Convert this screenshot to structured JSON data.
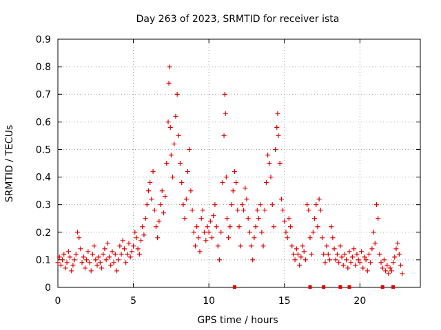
{
  "chart_data": {
    "type": "scatter",
    "title": "Day 263 of 2023, SRMTID for receiver ista",
    "xlabel": "GPS time / hours",
    "ylabel": "SRMTID / TECUs",
    "xlim": [
      0,
      24
    ],
    "ylim": [
      0,
      0.9
    ],
    "xticks": [
      "0",
      "5",
      "10",
      "15",
      "20"
    ],
    "yticks": [
      "0",
      "0.1",
      "0.2",
      "0.3",
      "0.4",
      "0.5",
      "0.6",
      "0.7",
      "0.8",
      "0.9"
    ],
    "grid": true,
    "marker": "plus",
    "color": "#e00000",
    "zero_markers_x": [
      11.7,
      16.7,
      17.6,
      18.7,
      19.3,
      21.5,
      22.2
    ],
    "series": [
      {
        "name": "SRMTID",
        "points": [
          [
            0.0,
            0.09
          ],
          [
            0.1,
            0.11
          ],
          [
            0.2,
            0.08
          ],
          [
            0.3,
            0.1
          ],
          [
            0.4,
            0.12
          ],
          [
            0.5,
            0.07
          ],
          [
            0.6,
            0.09
          ],
          [
            0.7,
            0.13
          ],
          [
            0.8,
            0.11
          ],
          [
            0.9,
            0.06
          ],
          [
            1.0,
            0.08
          ],
          [
            1.1,
            0.1
          ],
          [
            1.2,
            0.12
          ],
          [
            1.3,
            0.2
          ],
          [
            1.4,
            0.18
          ],
          [
            1.5,
            0.14
          ],
          [
            1.6,
            0.09
          ],
          [
            1.7,
            0.11
          ],
          [
            1.8,
            0.07
          ],
          [
            1.9,
            0.1
          ],
          [
            2.0,
            0.13
          ],
          [
            2.1,
            0.09
          ],
          [
            2.2,
            0.06
          ],
          [
            2.3,
            0.12
          ],
          [
            2.4,
            0.15
          ],
          [
            2.5,
            0.1
          ],
          [
            2.6,
            0.08
          ],
          [
            2.7,
            0.11
          ],
          [
            2.8,
            0.09
          ],
          [
            2.9,
            0.07
          ],
          [
            3.0,
            0.12
          ],
          [
            3.1,
            0.14
          ],
          [
            3.2,
            0.1
          ],
          [
            3.3,
            0.16
          ],
          [
            3.4,
            0.11
          ],
          [
            3.5,
            0.08
          ],
          [
            3.6,
            0.13
          ],
          [
            3.7,
            0.09
          ],
          [
            3.8,
            0.12
          ],
          [
            3.9,
            0.06
          ],
          [
            4.0,
            0.1
          ],
          [
            4.1,
            0.15
          ],
          [
            4.2,
            0.12
          ],
          [
            4.3,
            0.17
          ],
          [
            4.4,
            0.14
          ],
          [
            4.5,
            0.09
          ],
          [
            4.6,
            0.12
          ],
          [
            4.7,
            0.16
          ],
          [
            4.8,
            0.11
          ],
          [
            4.9,
            0.13
          ],
          [
            5.0,
            0.15
          ],
          [
            5.1,
            0.2
          ],
          [
            5.2,
            0.18
          ],
          [
            5.3,
            0.14
          ],
          [
            5.4,
            0.12
          ],
          [
            5.5,
            0.17
          ],
          [
            5.6,
            0.22
          ],
          [
            5.7,
            0.19
          ],
          [
            5.8,
            0.25
          ],
          [
            5.9,
            0.3
          ],
          [
            6.0,
            0.35
          ],
          [
            6.1,
            0.38
          ],
          [
            6.2,
            0.32
          ],
          [
            6.3,
            0.42
          ],
          [
            6.4,
            0.28
          ],
          [
            6.5,
            0.22
          ],
          [
            6.6,
            0.18
          ],
          [
            6.7,
            0.24
          ],
          [
            6.8,
            0.3
          ],
          [
            6.9,
            0.35
          ],
          [
            7.0,
            0.27
          ],
          [
            7.1,
            0.33
          ],
          [
            7.2,
            0.45
          ],
          [
            7.3,
            0.6
          ],
          [
            7.35,
            0.74
          ],
          [
            7.4,
            0.8
          ],
          [
            7.45,
            0.58
          ],
          [
            7.5,
            0.48
          ],
          [
            7.6,
            0.4
          ],
          [
            7.7,
            0.52
          ],
          [
            7.8,
            0.62
          ],
          [
            7.9,
            0.7
          ],
          [
            8.0,
            0.55
          ],
          [
            8.1,
            0.45
          ],
          [
            8.2,
            0.38
          ],
          [
            8.3,
            0.3
          ],
          [
            8.4,
            0.25
          ],
          [
            8.5,
            0.32
          ],
          [
            8.6,
            0.42
          ],
          [
            8.7,
            0.5
          ],
          [
            8.8,
            0.35
          ],
          [
            8.9,
            0.28
          ],
          [
            9.0,
            0.2
          ],
          [
            9.1,
            0.15
          ],
          [
            9.2,
            0.22
          ],
          [
            9.3,
            0.18
          ],
          [
            9.4,
            0.13
          ],
          [
            9.5,
            0.25
          ],
          [
            9.6,
            0.28
          ],
          [
            9.7,
            0.2
          ],
          [
            9.8,
            0.17
          ],
          [
            9.9,
            0.22
          ],
          [
            10.0,
            0.2
          ],
          [
            10.1,
            0.24
          ],
          [
            10.2,
            0.18
          ],
          [
            10.3,
            0.26
          ],
          [
            10.4,
            0.3
          ],
          [
            10.5,
            0.22
          ],
          [
            10.6,
            0.15
          ],
          [
            10.7,
            0.1
          ],
          [
            10.8,
            0.2
          ],
          [
            10.9,
            0.38
          ],
          [
            11.0,
            0.55
          ],
          [
            11.05,
            0.7
          ],
          [
            11.1,
            0.63
          ],
          [
            11.15,
            0.4
          ],
          [
            11.2,
            0.25
          ],
          [
            11.3,
            0.18
          ],
          [
            11.4,
            0.22
          ],
          [
            11.5,
            0.3
          ],
          [
            11.6,
            0.35
          ],
          [
            11.7,
            0.42
          ],
          [
            11.8,
            0.38
          ],
          [
            11.9,
            0.28
          ],
          [
            12.0,
            0.22
          ],
          [
            12.1,
            0.15
          ],
          [
            12.2,
            0.3
          ],
          [
            12.3,
            0.28
          ],
          [
            12.4,
            0.36
          ],
          [
            12.5,
            0.32
          ],
          [
            12.6,
            0.25
          ],
          [
            12.7,
            0.2
          ],
          [
            12.8,
            0.15
          ],
          [
            12.9,
            0.1
          ],
          [
            13.0,
            0.18
          ],
          [
            13.1,
            0.22
          ],
          [
            13.2,
            0.28
          ],
          [
            13.3,
            0.25
          ],
          [
            13.4,
            0.3
          ],
          [
            13.5,
            0.2
          ],
          [
            13.6,
            0.15
          ],
          [
            13.7,
            0.28
          ],
          [
            13.8,
            0.38
          ],
          [
            13.9,
            0.48
          ],
          [
            14.0,
            0.45
          ],
          [
            14.1,
            0.4
          ],
          [
            14.2,
            0.3
          ],
          [
            14.3,
            0.22
          ],
          [
            14.4,
            0.5
          ],
          [
            14.5,
            0.58
          ],
          [
            14.55,
            0.63
          ],
          [
            14.6,
            0.55
          ],
          [
            14.7,
            0.45
          ],
          [
            14.8,
            0.32
          ],
          [
            14.9,
            0.28
          ],
          [
            15.0,
            0.24
          ],
          [
            15.1,
            0.2
          ],
          [
            15.2,
            0.18
          ],
          [
            15.3,
            0.25
          ],
          [
            15.4,
            0.22
          ],
          [
            15.5,
            0.15
          ],
          [
            15.6,
            0.12
          ],
          [
            15.7,
            0.1
          ],
          [
            15.8,
            0.14
          ],
          [
            15.9,
            0.12
          ],
          [
            16.0,
            0.08
          ],
          [
            16.1,
            0.11
          ],
          [
            16.2,
            0.15
          ],
          [
            16.3,
            0.13
          ],
          [
            16.4,
            0.1
          ],
          [
            16.5,
            0.3
          ],
          [
            16.6,
            0.28
          ],
          [
            16.7,
            0.18
          ],
          [
            16.8,
            0.12
          ],
          [
            16.9,
            0.2
          ],
          [
            17.0,
            0.25
          ],
          [
            17.1,
            0.3
          ],
          [
            17.2,
            0.22
          ],
          [
            17.3,
            0.32
          ],
          [
            17.4,
            0.28
          ],
          [
            17.5,
            0.18
          ],
          [
            17.6,
            0.12
          ],
          [
            17.7,
            0.09
          ],
          [
            17.8,
            0.15
          ],
          [
            17.9,
            0.12
          ],
          [
            18.0,
            0.1
          ],
          [
            18.1,
            0.22
          ],
          [
            18.2,
            0.18
          ],
          [
            18.3,
            0.14
          ],
          [
            18.4,
            0.1
          ],
          [
            18.5,
            0.12
          ],
          [
            18.6,
            0.09
          ],
          [
            18.7,
            0.15
          ],
          [
            18.8,
            0.11
          ],
          [
            18.9,
            0.08
          ],
          [
            19.0,
            0.12
          ],
          [
            19.1,
            0.1
          ],
          [
            19.2,
            0.07
          ],
          [
            19.3,
            0.13
          ],
          [
            19.4,
            0.09
          ],
          [
            19.5,
            0.11
          ],
          [
            19.6,
            0.14
          ],
          [
            19.7,
            0.08
          ],
          [
            19.8,
            0.12
          ],
          [
            19.9,
            0.1
          ],
          [
            20.0,
            0.09
          ],
          [
            20.1,
            0.13
          ],
          [
            20.2,
            0.07
          ],
          [
            20.3,
            0.11
          ],
          [
            20.4,
            0.1
          ],
          [
            20.5,
            0.06
          ],
          [
            20.6,
            0.12
          ],
          [
            20.7,
            0.09
          ],
          [
            20.8,
            0.14
          ],
          [
            20.9,
            0.2
          ],
          [
            21.0,
            0.16
          ],
          [
            21.1,
            0.3
          ],
          [
            21.2,
            0.25
          ],
          [
            21.3,
            0.12
          ],
          [
            21.4,
            0.09
          ],
          [
            21.5,
            0.07
          ],
          [
            21.6,
            0.1
          ],
          [
            21.7,
            0.06
          ],
          [
            21.8,
            0.08
          ],
          [
            21.9,
            0.05
          ],
          [
            22.0,
            0.07
          ],
          [
            22.1,
            0.06
          ],
          [
            22.2,
            0.09
          ],
          [
            22.3,
            0.11
          ],
          [
            22.4,
            0.14
          ],
          [
            22.5,
            0.16
          ],
          [
            22.6,
            0.12
          ],
          [
            22.7,
            0.08
          ],
          [
            22.8,
            0.05
          ]
        ]
      }
    ]
  }
}
